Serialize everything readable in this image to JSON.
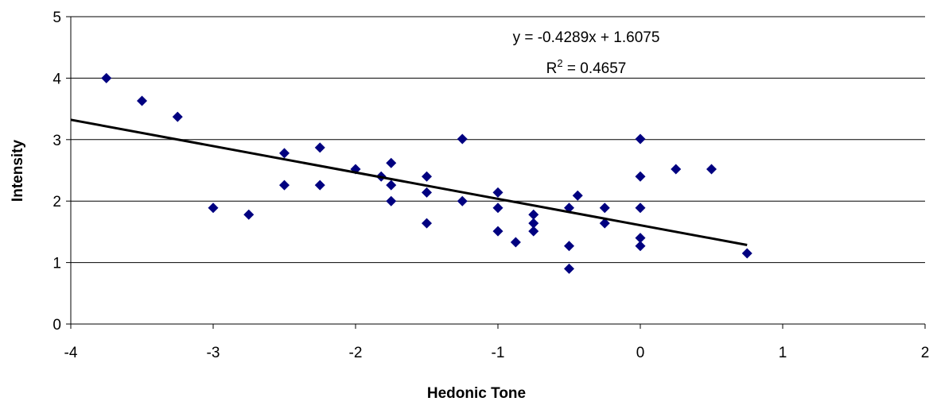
{
  "chart_data": {
    "type": "scatter",
    "x_label": "Hedonic Tone",
    "y_label": "Intensity",
    "xlim": [
      -4,
      2
    ],
    "xticks": [
      -4,
      -3,
      -2,
      -1,
      0,
      1,
      2
    ],
    "ylim": [
      0,
      5
    ],
    "yticks": [
      0,
      1,
      2,
      3,
      4,
      5
    ],
    "grid": true,
    "series": [
      {
        "color": "#000080",
        "x": [
          -3.75,
          -3.5,
          -3.25,
          -3,
          -2.75,
          -2.5,
          -2.5,
          -2.25,
          -2.25,
          -2,
          -1.82,
          -1.75,
          -1.75,
          -1.75,
          -1.5,
          -1.5,
          -1.5,
          -1.25,
          -1.25,
          -1,
          -1,
          -1,
          -0.875,
          -0.75,
          -0.75,
          -0.75,
          -0.5,
          -0.5,
          -0.5,
          -0.44,
          -0.25,
          -0.25,
          0,
          0,
          0,
          0,
          0,
          0.25,
          0.5,
          0.75
        ],
        "values": [
          4,
          3.63,
          3.37,
          1.89,
          1.78,
          2.78,
          2.26,
          2.87,
          2.26,
          2.52,
          2.4,
          2.62,
          2.26,
          2,
          2.4,
          2.14,
          1.64,
          3.01,
          2,
          2.14,
          1.89,
          1.51,
          1.33,
          1.78,
          1.64,
          1.51,
          1.89,
          1.27,
          0.9,
          2.09,
          1.89,
          1.64,
          3.01,
          2.4,
          1.89,
          1.4,
          1.27,
          2.52,
          2.52,
          1.15
        ]
      }
    ],
    "trendline": {
      "color": "#000000",
      "x": [
        -4,
        0.75
      ],
      "values": [
        3.3231,
        1.2858
      ],
      "equation": "y = -0.4289x + 1.6075",
      "r_squared": {
        "base": "R",
        "sup": "2",
        "rest": " = 0.4657"
      }
    }
  }
}
